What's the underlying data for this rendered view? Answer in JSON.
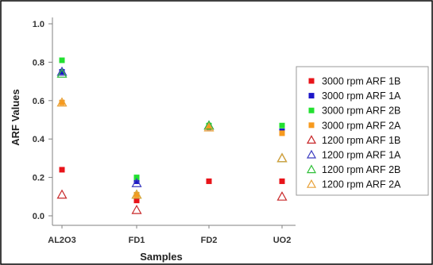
{
  "chart_data": {
    "type": "scatter",
    "title": "",
    "xlabel": "Samples",
    "ylabel": "ARF Values",
    "categories": [
      "AL2O3",
      "FD1",
      "FD2",
      "UO2"
    ],
    "ylim": [
      0,
      1.0
    ],
    "yticks": [
      "0.0",
      "0.2",
      "0.4",
      "0.6",
      "0.8",
      "1.0"
    ],
    "grid": false,
    "legend_position": "right",
    "series": [
      {
        "name": "3000 rpm ARF 1B",
        "marker": "square",
        "color": "#e8141a",
        "values": [
          0.24,
          0.08,
          0.18,
          0.18
        ]
      },
      {
        "name": "3000 rpm ARF 1A",
        "marker": "square",
        "color": "#1c16c8",
        "values": [
          0.75,
          0.18,
          0.46,
          0.44
        ]
      },
      {
        "name": "3000 rpm ARF 2B",
        "marker": "square",
        "color": "#22e030",
        "values": [
          0.81,
          0.2,
          0.47,
          0.47
        ]
      },
      {
        "name": "3000 rpm ARF 2A",
        "marker": "square",
        "color": "#f79a1e",
        "values": [
          0.59,
          0.11,
          0.46,
          0.43
        ]
      },
      {
        "name": "1200 rpm ARF 1B",
        "marker": "triangle",
        "color": "#c8282a",
        "values": [
          0.11,
          0.03,
          null,
          0.1
        ]
      },
      {
        "name": "1200 rpm ARF 1A",
        "marker": "triangle",
        "color": "#3b3bbf",
        "values": [
          0.75,
          0.17,
          0.47,
          0.3
        ]
      },
      {
        "name": "1200 rpm ARF 2B",
        "marker": "triangle",
        "color": "#2fbf38",
        "values": [
          0.74,
          0.11,
          0.47,
          0.3
        ]
      },
      {
        "name": "1200 rpm ARF 2A",
        "marker": "triangle",
        "color": "#e8a23a",
        "values": [
          0.59,
          0.11,
          0.46,
          0.3
        ]
      }
    ]
  }
}
